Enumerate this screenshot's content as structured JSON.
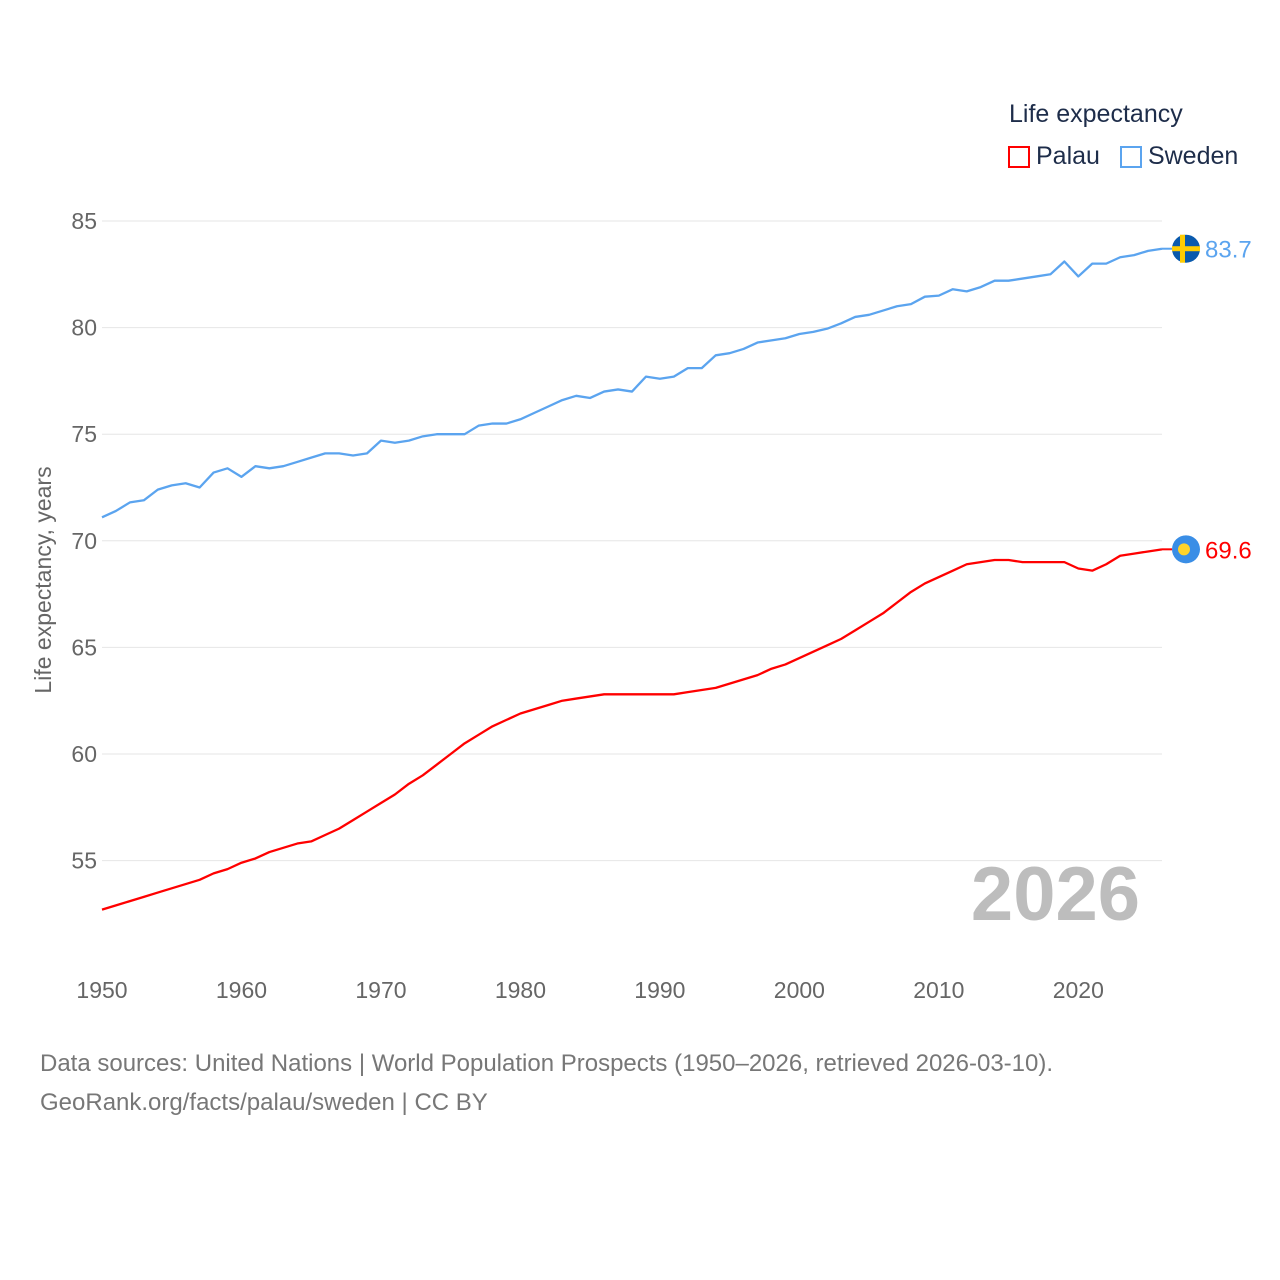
{
  "chart_data": {
    "type": "line",
    "title": "",
    "ylabel": "Life expectancy, years",
    "xlabel": "",
    "ylim": [
      51,
      86
    ],
    "xlim": [
      1950,
      2026
    ],
    "yticks": [
      55,
      60,
      65,
      70,
      75,
      80,
      85
    ],
    "xticks": [
      1950,
      1960,
      1970,
      1980,
      1990,
      2000,
      2010,
      2020
    ],
    "grid": true,
    "year_label": "2026",
    "legend": {
      "title": "Life expectancy",
      "placement": "top-right"
    },
    "x": [
      1950,
      1951,
      1952,
      1953,
      1954,
      1955,
      1956,
      1957,
      1958,
      1959,
      1960,
      1961,
      1962,
      1963,
      1964,
      1965,
      1966,
      1967,
      1968,
      1969,
      1970,
      1971,
      1972,
      1973,
      1974,
      1975,
      1976,
      1977,
      1978,
      1979,
      1980,
      1981,
      1982,
      1983,
      1984,
      1985,
      1986,
      1987,
      1988,
      1989,
      1990,
      1991,
      1992,
      1993,
      1994,
      1995,
      1996,
      1997,
      1998,
      1999,
      2000,
      2001,
      2002,
      2003,
      2004,
      2005,
      2006,
      2007,
      2008,
      2009,
      2010,
      2011,
      2012,
      2013,
      2014,
      2015,
      2016,
      2017,
      2018,
      2019,
      2020,
      2021,
      2022,
      2023,
      2024,
      2025,
      2026
    ],
    "series": [
      {
        "name": "Palau",
        "color": "#ff0000",
        "end_label": "69.6",
        "values": [
          52.7,
          52.9,
          53.1,
          53.3,
          53.5,
          53.7,
          53.9,
          54.1,
          54.4,
          54.6,
          54.9,
          55.1,
          55.4,
          55.6,
          55.8,
          55.9,
          56.2,
          56.5,
          56.9,
          57.3,
          57.7,
          58.1,
          58.6,
          59.0,
          59.5,
          60.0,
          60.5,
          60.9,
          61.3,
          61.6,
          61.9,
          62.1,
          62.3,
          62.5,
          62.6,
          62.7,
          62.8,
          62.8,
          62.8,
          62.8,
          62.8,
          62.8,
          62.9,
          63.0,
          63.1,
          63.3,
          63.5,
          63.7,
          64.0,
          64.2,
          64.5,
          64.8,
          65.1,
          65.4,
          65.8,
          66.2,
          66.6,
          67.1,
          67.6,
          68.0,
          68.3,
          68.6,
          68.9,
          69.0,
          69.1,
          69.1,
          69.0,
          69.0,
          69.0,
          69.0,
          68.7,
          68.6,
          68.9,
          69.3,
          69.4,
          69.5,
          69.6
        ]
      },
      {
        "name": "Sweden",
        "color": "#5ba4ef",
        "end_label": "83.7",
        "values": [
          71.1,
          71.4,
          71.8,
          71.9,
          72.4,
          72.6,
          72.7,
          72.5,
          73.2,
          73.4,
          73.0,
          73.5,
          73.4,
          73.5,
          73.7,
          73.9,
          74.1,
          74.1,
          74.0,
          74.1,
          74.7,
          74.6,
          74.7,
          74.9,
          75.0,
          75.0,
          75.0,
          75.4,
          75.5,
          75.5,
          75.7,
          76.0,
          76.3,
          76.6,
          76.8,
          76.7,
          77.0,
          77.1,
          77.0,
          77.7,
          77.6,
          77.7,
          78.1,
          78.1,
          78.7,
          78.8,
          79.0,
          79.3,
          79.4,
          79.5,
          79.7,
          79.8,
          79.95,
          80.2,
          80.5,
          80.6,
          80.8,
          81.0,
          81.1,
          81.45,
          81.5,
          81.8,
          81.7,
          81.9,
          82.2,
          82.2,
          82.3,
          82.4,
          82.5,
          83.1,
          82.4,
          83.0,
          83.0,
          83.3,
          83.4,
          83.6,
          83.7
        ]
      }
    ]
  },
  "footer": {
    "line1": "Data sources: United Nations | World Population Prospects (1950–2026, retrieved 2026-03-10).",
    "line2": "GeoRank.org/facts/palau/sweden | CC BY"
  }
}
